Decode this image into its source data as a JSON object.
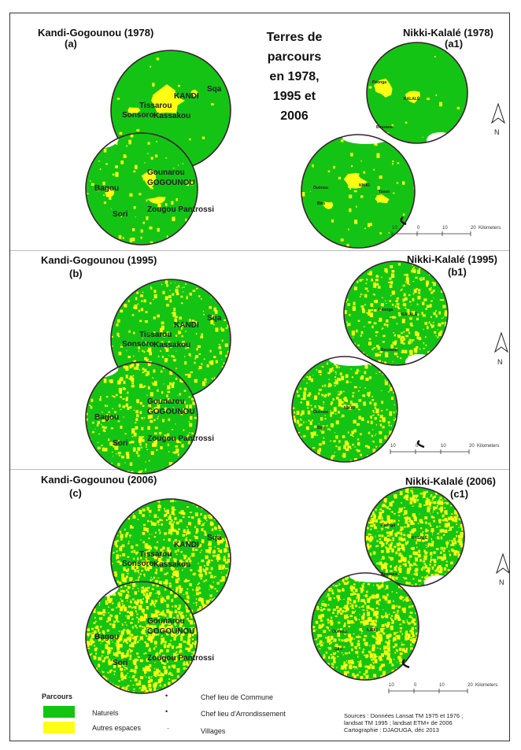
{
  "main_title": [
    "Terres de",
    "parcours",
    "en 1978,",
    "1995 et",
    "2006"
  ],
  "panels": [
    {
      "left_title": "Kandi-Gogounou (1978)",
      "left_sub": "(a)",
      "right_title": "Nikki-Kalalé (1978)",
      "right_sub": "(a1)",
      "natural_share_kandi": 0.88,
      "natural_share_nikki": 0.9
    },
    {
      "left_title": "Kandi-Gogounou (1995)",
      "left_sub": "(b)",
      "right_title": "Nikki-Kalalé (1995)",
      "right_sub": "(b1)",
      "natural_share_kandi": 0.72,
      "natural_share_nikki": 0.68
    },
    {
      "left_title": "Kandi-Gogounou (2006)",
      "left_sub": "(c)",
      "right_title": "Nikki-Kalalé (2006)",
      "right_sub": "(c1)",
      "natural_share_kandi": 0.55,
      "natural_share_nikki": 0.62
    }
  ],
  "kandi_places": {
    "sqa": "Sqa",
    "kandi": "KANDI",
    "tissarou": "Tissarou",
    "sonsoro": "Sonsoro",
    "kassakou": "Kassakou",
    "gounarou": "Gounarou",
    "gogounou": "GOGOUNOU",
    "bagou": "Bagou",
    "sori": "Sori",
    "zougou": "Zougou Pantrossi"
  },
  "nikki_places": {
    "a1": [
      "Péonga",
      "KALALÉ",
      "Bessassi"
    ],
    "a1_south": [
      "Ouénou",
      "NIKKI",
      "Tasso",
      "Biro"
    ],
    "b1": [
      "Péonga",
      "KALALÉ",
      "Bessassi"
    ],
    "b1_south": [
      "Ouénou",
      "NIKKI",
      "Biro"
    ],
    "c1": [
      "Péonga",
      "KALALÉ",
      "Bessassi"
    ],
    "c1_south": [
      "Ouénou",
      "NIKKI",
      "Biro"
    ]
  },
  "north": "N",
  "scale_bar": {
    "ticks": [
      "10",
      "0",
      "10",
      "20"
    ],
    "unit": "Kilometers"
  },
  "legend": {
    "header": "Parcours",
    "natural": "Naturels",
    "other": "Autres espaces",
    "commune": "Chef lieu de Commune",
    "arrondissement": "Chef lieu d'Arrondissement",
    "villages": "Villages",
    "bullet_commune": "•",
    "bullet_arr": "•",
    "bullet_village": "·"
  },
  "sources": [
    "Sources : Données  Lansat TM 1975 et 1976 ;",
    "landsat TM 1995 ; landsat ETM+ de 2006",
    "Cartographie : DJAOUGA, déc 2013"
  ],
  "colors": {
    "natural": "#14c414",
    "other": "#ffff14",
    "border": "#3a1f30",
    "frame": "#333333"
  }
}
